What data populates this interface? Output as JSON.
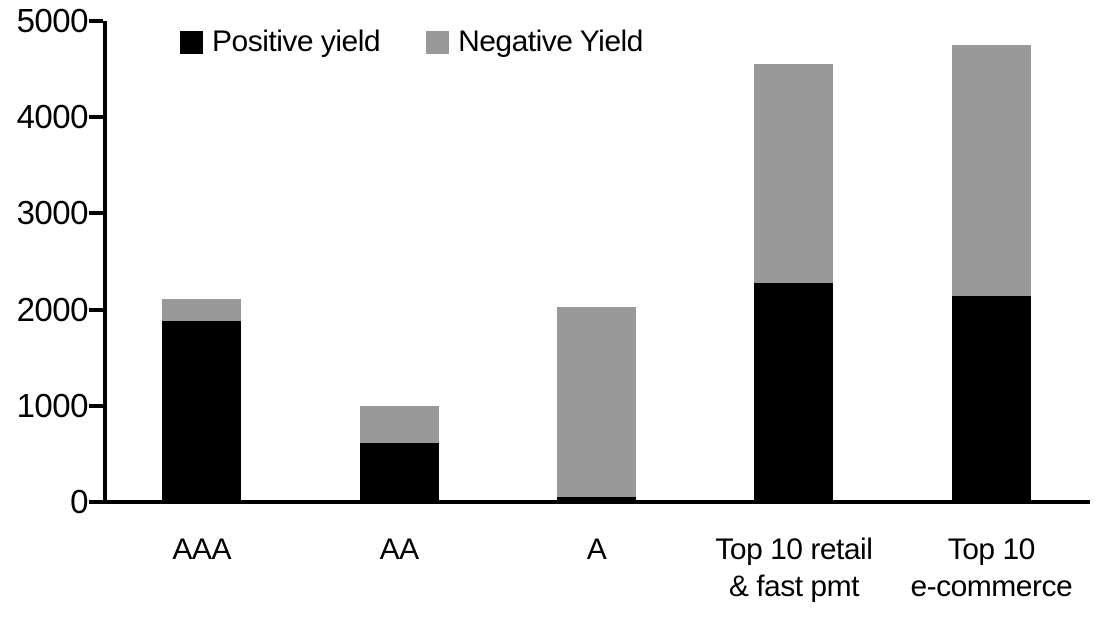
{
  "chart_data": {
    "type": "bar",
    "stacked": true,
    "title": "",
    "xlabel": "",
    "ylabel": "",
    "categories": [
      "AAA",
      "AA",
      "A",
      "Top 10 retail\n& fast pmt",
      "Top 10\ne-commerce"
    ],
    "series": [
      {
        "name": "Positive yield",
        "color": "#000000",
        "values": [
          1880,
          615,
          50,
          2280,
          2140
        ]
      },
      {
        "name": "Negative Yield",
        "color": "#999999",
        "values": [
          230,
          385,
          1980,
          2270,
          2610
        ]
      }
    ],
    "stack_totals": [
      2110,
      1000,
      2030,
      4550,
      4750
    ],
    "y_ticks": [
      "0",
      "1000",
      "2000",
      "3000",
      "4000",
      "5000"
    ],
    "ylim": [
      0,
      5000
    ],
    "grid": false,
    "legend_position": "top-left-inside",
    "axis_color": "#000000",
    "background_color": "#ffffff"
  }
}
